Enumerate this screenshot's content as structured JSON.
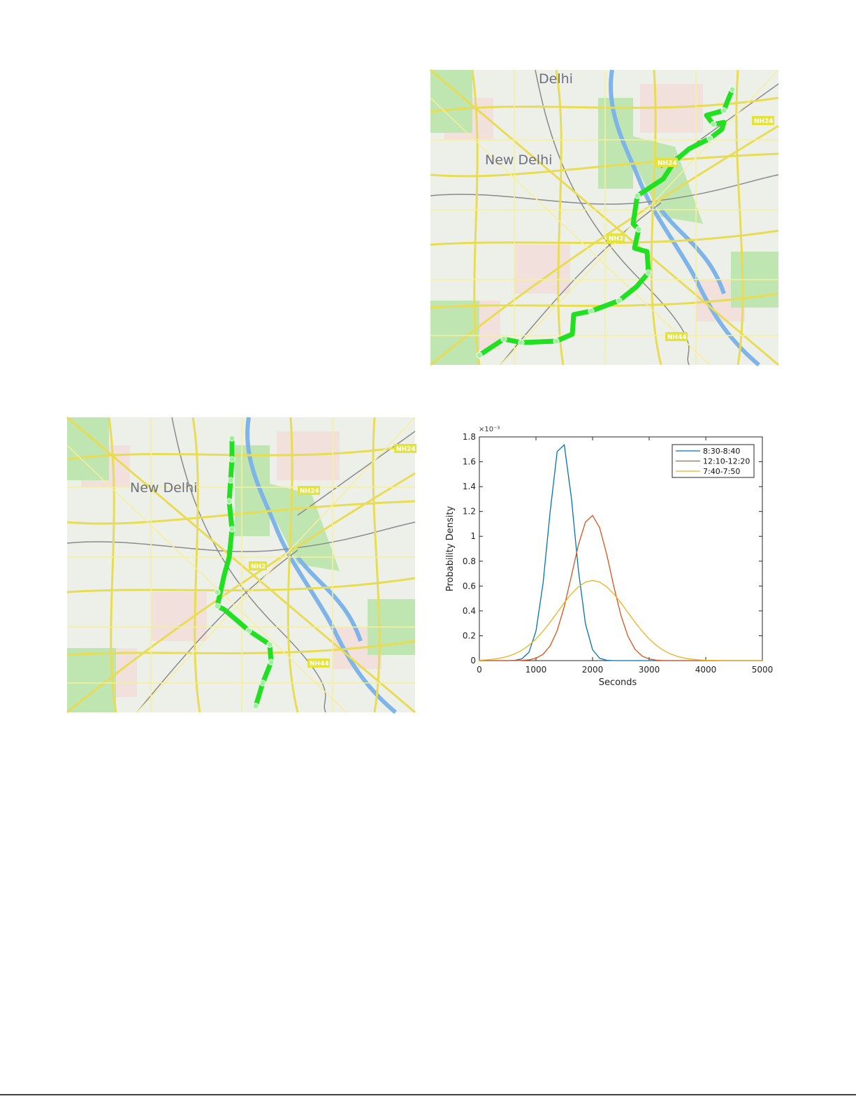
{
  "maps": [
    {
      "labels": [
        "Delhi",
        "New Delhi",
        "NH24",
        "NH24",
        "NH2",
        "NH44"
      ]
    },
    {
      "labels": [
        "New Delhi",
        "NH24",
        "NH24",
        "NH2",
        "NH44"
      ]
    }
  ],
  "chart_data": {
    "type": "line",
    "x_label": "Seconds",
    "y_label": "Probability Density",
    "y_multiplier": "×10⁻³",
    "x": [
      0,
      125,
      250,
      375,
      500,
      625,
      750,
      875,
      1000,
      1125,
      1250,
      1375,
      1500,
      1625,
      1750,
      1875,
      2000,
      2125,
      2250,
      2375,
      2500,
      2625,
      2750,
      2875,
      3000,
      3125,
      3250,
      3375,
      3500,
      3625,
      3750,
      3875,
      4000,
      4125,
      4250,
      4375,
      4500,
      4625,
      4750,
      4875,
      5000
    ],
    "series": [
      {
        "name": "8:30-8:40",
        "color": "#0072bd",
        "values": [
          0,
          0,
          0,
          0,
          0,
          0.002,
          0.014,
          0.066,
          0.237,
          0.621,
          1.194,
          1.683,
          1.736,
          1.312,
          0.726,
          0.294,
          0.088,
          0.019,
          0.003,
          0,
          0,
          0,
          0,
          0,
          0,
          0,
          0,
          0,
          0,
          0,
          0,
          0,
          0,
          0,
          0,
          0,
          0,
          0,
          0,
          0,
          0
        ]
      },
      {
        "name": "12:10-12:20",
        "color": "#d95319",
        "values": [
          0,
          0,
          0,
          0,
          0,
          0,
          0.002,
          0.006,
          0.019,
          0.051,
          0.118,
          0.242,
          0.434,
          0.68,
          0.932,
          1.116,
          1.168,
          1.069,
          0.855,
          0.598,
          0.366,
          0.196,
          0.091,
          0.037,
          0.013,
          0.004,
          0,
          0,
          0,
          0,
          0,
          0,
          0,
          0,
          0,
          0,
          0,
          0,
          0,
          0,
          0
        ]
      },
      {
        "name": "7:40-7:50",
        "color": "#edb120",
        "values": [
          0.003,
          0.006,
          0.012,
          0.02,
          0.034,
          0.054,
          0.083,
          0.123,
          0.174,
          0.237,
          0.309,
          0.387,
          0.465,
          0.537,
          0.594,
          0.632,
          0.645,
          0.632,
          0.594,
          0.537,
          0.465,
          0.387,
          0.309,
          0.237,
          0.174,
          0.123,
          0.083,
          0.054,
          0.034,
          0.02,
          0.012,
          0.006,
          0.003,
          0.002,
          0.001,
          0,
          0,
          0,
          0,
          0,
          0
        ]
      }
    ],
    "xlim": [
      0,
      5000
    ],
    "xticks": [
      0,
      1000,
      2000,
      3000,
      4000,
      5000
    ],
    "ylim": [
      0,
      1.8
    ],
    "yticks": [
      0,
      0.2,
      0.4,
      0.6,
      0.8,
      1,
      1.2,
      1.4,
      1.6,
      1.8
    ],
    "legend": "top-right"
  }
}
